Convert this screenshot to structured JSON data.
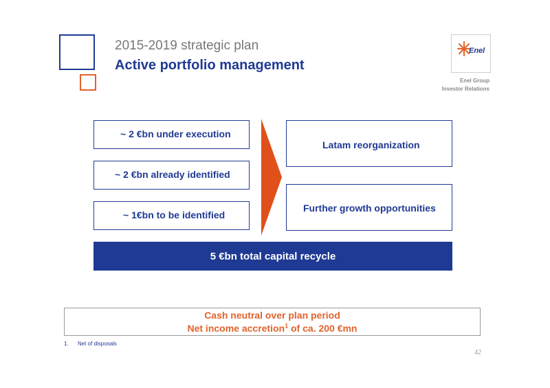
{
  "header": {
    "subtitle": "2015-2019 strategic plan",
    "title": "Active portfolio management"
  },
  "logo": {
    "wordmark": "Enel",
    "group_line1": "Enel Group",
    "group_line2": "Investor Relations"
  },
  "left_items": [
    "~ 2 €bn under execution",
    "~ 2 €bn already identified",
    "~ 1€bn to be identified"
  ],
  "right_items": [
    "Latam reorganization",
    "Further growth opportunities"
  ],
  "total_bar": "5 €bn total capital recycle",
  "cash_box": {
    "line1": "Cash neutral over plan period",
    "line2_pre": "Net income accretion",
    "line2_sup": "1",
    "line2_post": " of ca. 200 €mn"
  },
  "footnote": {
    "number": "1.",
    "text": "Net of disposals"
  },
  "page_number": "42",
  "colors": {
    "brand_blue": "#1f3a93",
    "accent_orange": "#e0622a",
    "arrow_orange": "#e0501a",
    "grey_text": "#777777"
  },
  "icons": {
    "logo": "enel-logo-icon",
    "arrow": "arrow-right-icon"
  }
}
